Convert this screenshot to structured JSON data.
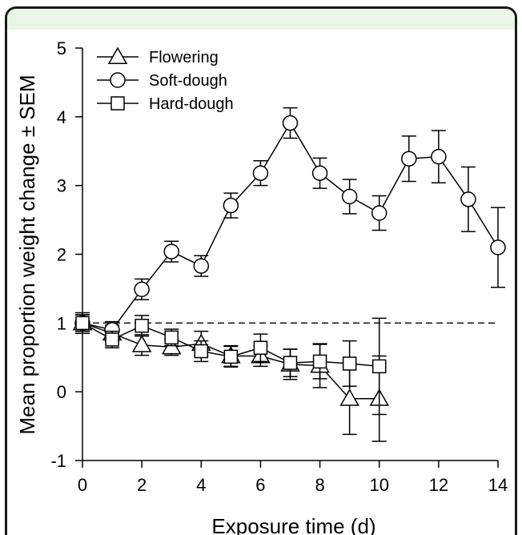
{
  "chart_data": {
    "type": "line",
    "xlabel": "Exposure time (d)",
    "ylabel": "Mean proportion weight change ± SEM",
    "xlim": [
      0,
      14
    ],
    "ylim": [
      -1,
      5
    ],
    "xticks": [
      0,
      2,
      4,
      6,
      8,
      10,
      12,
      14
    ],
    "yticks": [
      -1,
      0,
      1,
      2,
      3,
      4,
      5
    ],
    "reference_line": {
      "y": 1,
      "style": "dashed"
    },
    "legend_position": "top-left",
    "grid": false,
    "series": [
      {
        "name": "Flowering",
        "marker": "triangle",
        "x": [
          0,
          1,
          2,
          3,
          4,
          5,
          6,
          7,
          8,
          9,
          10
        ],
        "y": [
          1.0,
          0.85,
          0.68,
          0.65,
          0.7,
          0.52,
          0.52,
          0.4,
          0.38,
          -0.1,
          -0.1
        ],
        "err": [
          0.12,
          0.12,
          0.15,
          0.12,
          0.18,
          0.15,
          0.15,
          0.22,
          0.32,
          0.52,
          0.62
        ]
      },
      {
        "name": "Soft-dough",
        "marker": "circle",
        "x": [
          0,
          1,
          2,
          3,
          4,
          5,
          6,
          7,
          8,
          9,
          10,
          11,
          12,
          13,
          14
        ],
        "y": [
          1.0,
          0.9,
          1.49,
          2.04,
          1.83,
          2.71,
          3.18,
          3.91,
          3.18,
          2.84,
          2.6,
          3.39,
          3.42,
          2.8,
          2.1
        ],
        "err": [
          0.15,
          0.12,
          0.15,
          0.15,
          0.15,
          0.18,
          0.18,
          0.22,
          0.22,
          0.25,
          0.25,
          0.33,
          0.38,
          0.47,
          0.58
        ]
      },
      {
        "name": "Hard-dough",
        "marker": "square",
        "x": [
          0,
          1,
          2,
          3,
          4,
          5,
          6,
          7,
          8,
          9,
          10
        ],
        "y": [
          1.0,
          0.76,
          0.96,
          0.79,
          0.59,
          0.51,
          0.64,
          0.42,
          0.44,
          0.41,
          0.37
        ],
        "err": [
          0.12,
          0.12,
          0.15,
          0.12,
          0.15,
          0.15,
          0.2,
          0.2,
          0.25,
          0.33,
          0.7
        ]
      }
    ]
  }
}
